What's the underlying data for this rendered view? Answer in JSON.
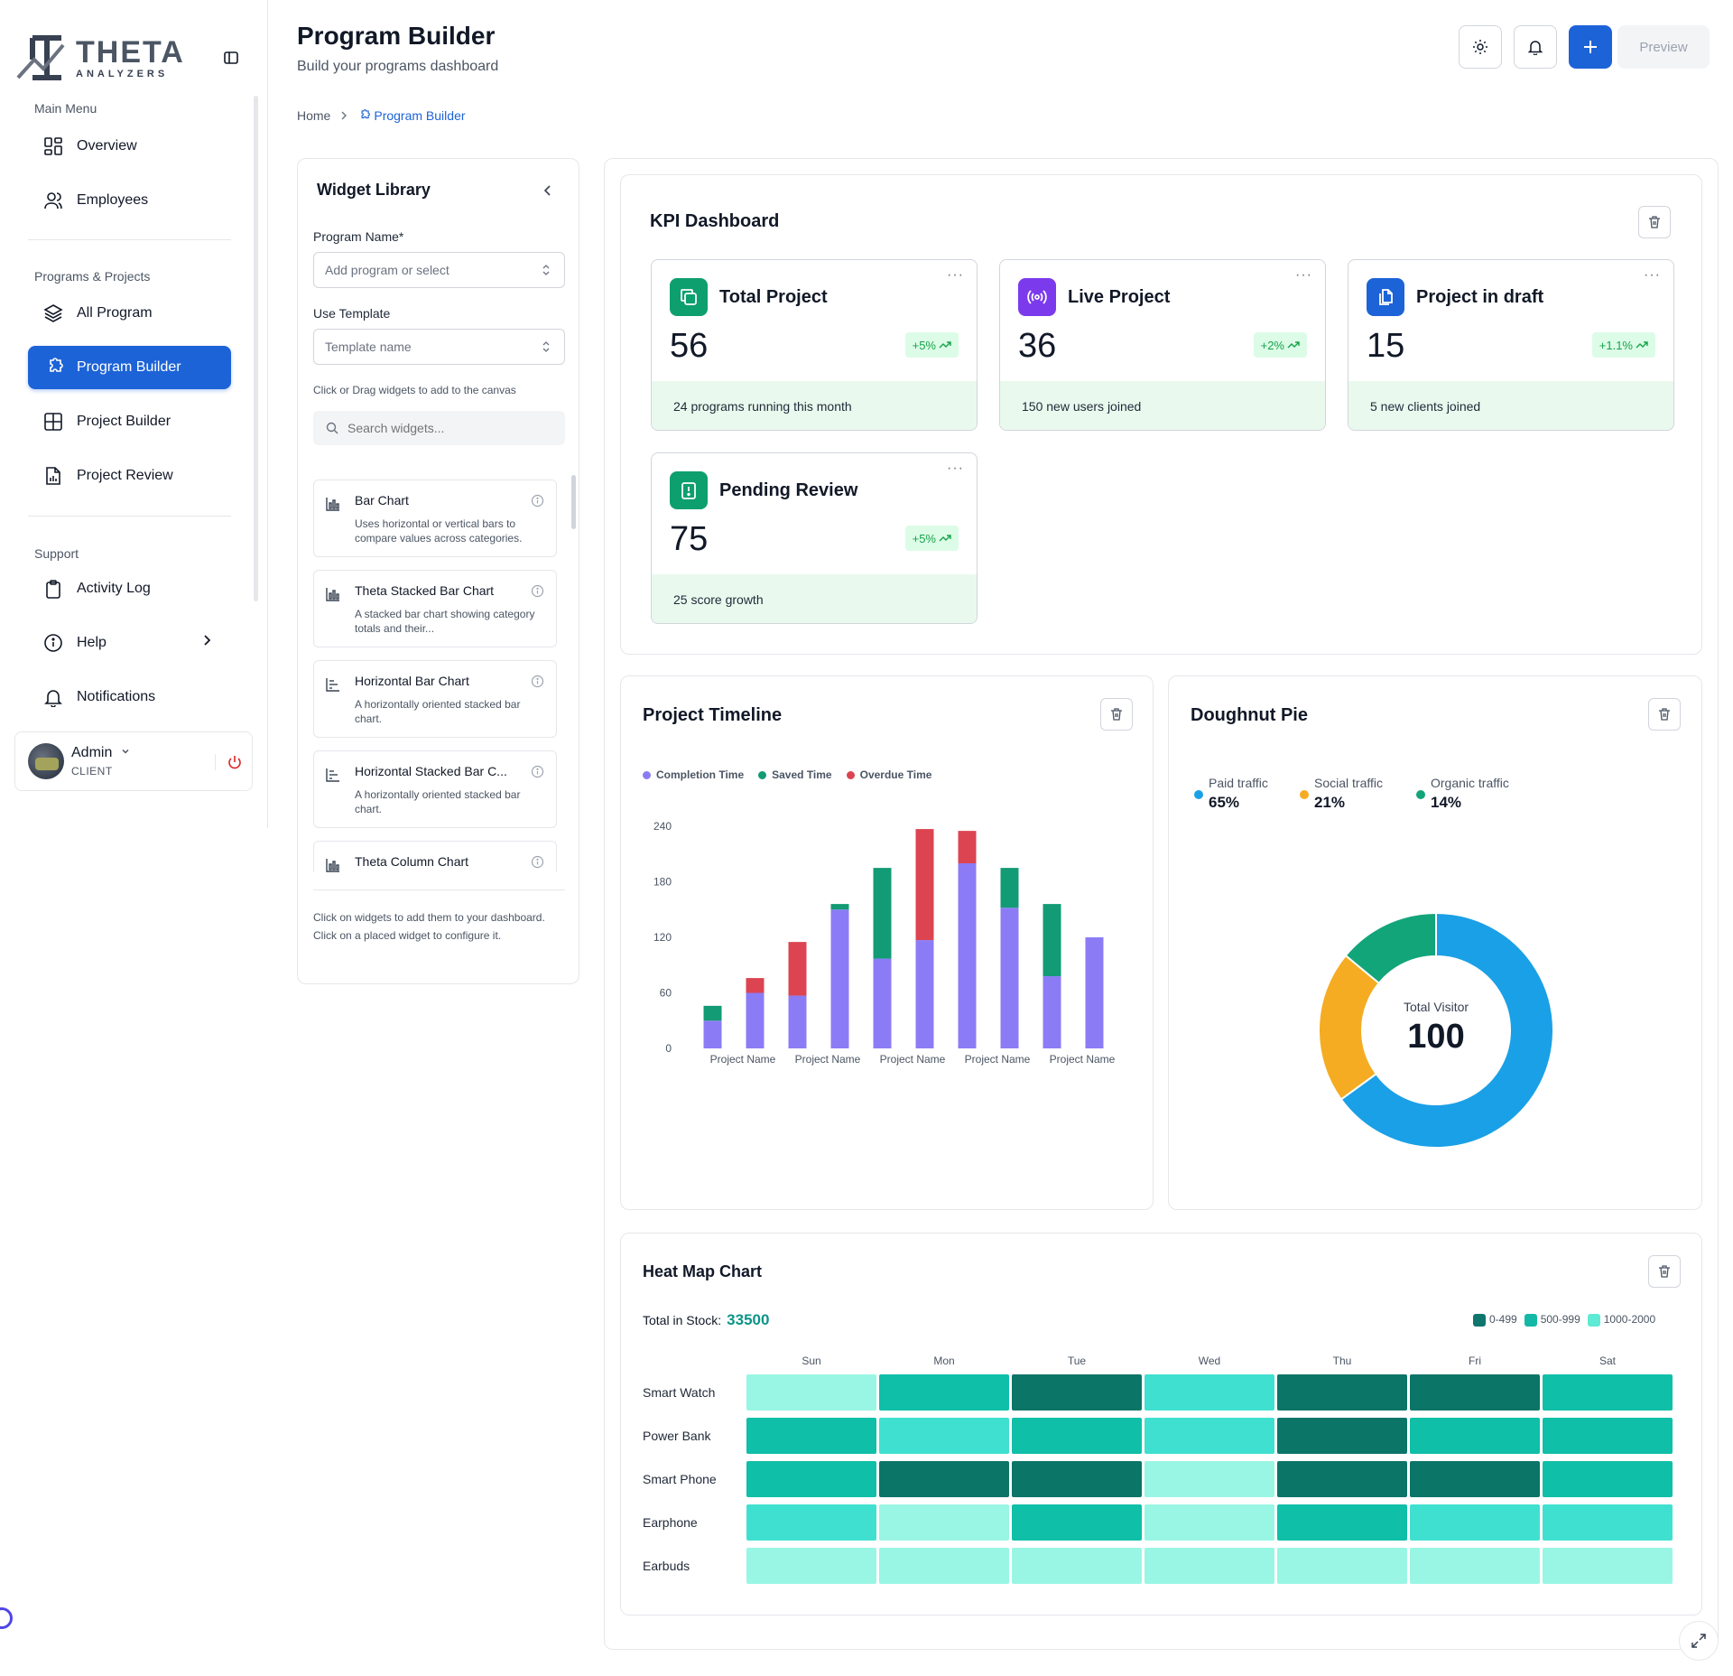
{
  "sidebar": {
    "logo_text": "THETA",
    "logo_sub": "ANALYZERS",
    "sections": {
      "main": "Main Menu",
      "programs": "Programs & Projects",
      "support": "Support"
    },
    "items": [
      {
        "label": "Overview",
        "icon": "grid-icon"
      },
      {
        "label": "Employees",
        "icon": "users-icon"
      },
      {
        "label": "All Program",
        "icon": "layers-icon"
      },
      {
        "label": "Program Builder",
        "icon": "puzzle-icon",
        "active": true
      },
      {
        "label": "Project Builder",
        "icon": "layout-icon"
      },
      {
        "label": "Project Review",
        "icon": "file-chart-icon"
      },
      {
        "label": "Activity Log",
        "icon": "clipboard-icon"
      },
      {
        "label": "Help",
        "icon": "info-icon"
      },
      {
        "label": "Notifications",
        "icon": "bell-icon"
      }
    ],
    "user": {
      "name": "Admin",
      "role": "CLIENT"
    }
  },
  "header": {
    "title": "Program Builder",
    "subtitle": "Build your programs dashboard",
    "preview_label": "Preview"
  },
  "breadcrumb": {
    "home": "Home",
    "current": "Program Builder"
  },
  "library": {
    "title": "Widget Library",
    "program_name_label": "Program Name*",
    "program_name_placeholder": "Add program or select",
    "template_label": "Use Template",
    "template_placeholder": "Template name",
    "hint": "Click or Drag widgets to add to the canvas",
    "search_placeholder": "Search widgets...",
    "widgets": [
      {
        "name": "Bar Chart",
        "desc": "Uses horizontal or vertical bars to compare values across categories."
      },
      {
        "name": "Theta Stacked Bar Chart",
        "desc": "A stacked bar chart showing category totals and their..."
      },
      {
        "name": "Horizontal Bar Chart",
        "desc": "A horizontally oriented stacked bar chart."
      },
      {
        "name": "Horizontal Stacked Bar C...",
        "desc": "A horizontally oriented stacked bar chart."
      },
      {
        "name": "Theta Column Chart",
        "desc": ""
      }
    ],
    "footer": "Click on widgets to add them to your dashboard. Click on a placed widget to configure it."
  },
  "kpi": {
    "title": "KPI Dashboard",
    "cards": [
      {
        "title": "Total Project",
        "value": "56",
        "badge": "+5%",
        "foot": "24 programs running this month",
        "color": "#0e9f6e",
        "icon": "copy-icon"
      },
      {
        "title": "Live Project",
        "value": "36",
        "badge": "+2%",
        "foot": "150 new users joined",
        "color": "#7c3aed",
        "icon": "broadcast-icon"
      },
      {
        "title": "Project in draft",
        "value": "15",
        "badge": "+1.1%",
        "foot": "5 new clients joined",
        "color": "#1d63d8",
        "icon": "files-icon"
      },
      {
        "title": "Pending Review",
        "value": "75",
        "badge": "+5%",
        "foot": "25 score growth",
        "color": "#0e9f6e",
        "icon": "alert-icon"
      }
    ]
  },
  "timeline": {
    "title": "Project Timeline",
    "chart_data": {
      "type": "bar",
      "stacked": true,
      "x_tick_labels": [
        "Project Name",
        "Project Name",
        "Project Name",
        "Project Name",
        "Project Name"
      ],
      "y_ticks": [
        0,
        60,
        120,
        180,
        240
      ],
      "ylim": [
        0,
        240
      ],
      "series": [
        {
          "name": "Completion Time",
          "color": "#8b7cf6",
          "values": [
            30,
            60,
            57,
            150,
            97,
            117,
            200,
            152,
            78,
            120
          ]
        },
        {
          "name": "Saved Time",
          "color": "#129b74",
          "values": [
            16,
            0,
            0,
            6,
            98,
            0,
            0,
            43,
            78,
            0
          ]
        },
        {
          "name": "Overdue Time",
          "color": "#dc4451",
          "values": [
            0,
            16,
            58,
            0,
            0,
            120,
            35,
            0,
            0,
            0
          ]
        }
      ]
    }
  },
  "doughnut": {
    "title": "Doughnut Pie",
    "center_label": "Total Visitor",
    "center_value": "100",
    "chart_data": {
      "type": "pie",
      "slices": [
        {
          "label": "Paid traffic",
          "pct": "65%",
          "value": 65,
          "color": "#1aa0e6"
        },
        {
          "label": "Social traffic",
          "pct": "21%",
          "value": 21,
          "color": "#f5ac22"
        },
        {
          "label": "Organic traffic",
          "pct": "14%",
          "value": 14,
          "color": "#12a57a"
        }
      ]
    }
  },
  "heatmap": {
    "title": "Heat Map Chart",
    "total_label": "Total in Stock:",
    "total_value": "33500",
    "legend": [
      {
        "label": "0-499",
        "color": "#0f766e"
      },
      {
        "label": "500-999",
        "color": "#14b8a6"
      },
      {
        "label": "1000-2000",
        "color": "#5eead4"
      }
    ],
    "chart_data": {
      "type": "heatmap",
      "columns": [
        "Sun",
        "Mon",
        "Tue",
        "Wed",
        "Thu",
        "Fri",
        "Sat"
      ],
      "rows": [
        "Smart Watch",
        "Power Bank",
        "Smart Phone",
        "Earphone",
        "Earbuds"
      ],
      "levels": [
        [
          0,
          2,
          3,
          1,
          3,
          3,
          2
        ],
        [
          2,
          1,
          2,
          1,
          3,
          2,
          2
        ],
        [
          2,
          3,
          3,
          0,
          3,
          3,
          2
        ],
        [
          1,
          0,
          2,
          0,
          2,
          1,
          1
        ],
        [
          0,
          0,
          0,
          0,
          0,
          0,
          0
        ]
      ],
      "level_colors": [
        "#99f6e4",
        "#40e0d0",
        "#0fbfa8",
        "#0b7568"
      ]
    }
  }
}
